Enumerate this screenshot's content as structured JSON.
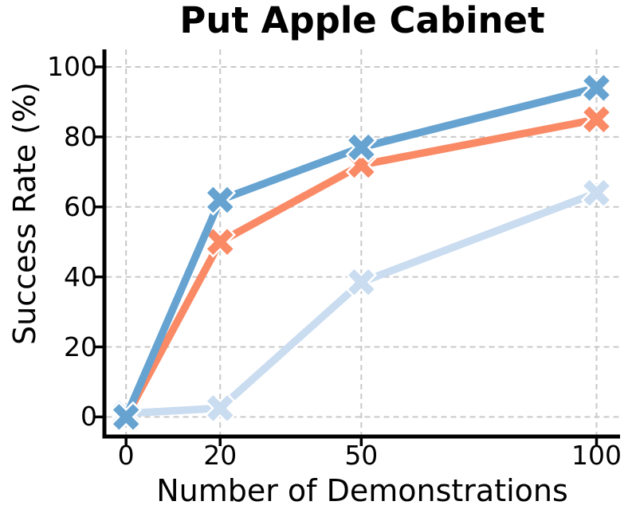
{
  "chart_data": {
    "type": "line",
    "title": "Put Apple Cabinet",
    "xlabel": "Number of Demonstrations",
    "ylabel": "Success Rate (%)",
    "x": [
      0,
      20,
      50,
      100
    ],
    "x_tick_labels": [
      "0",
      "20",
      "50",
      "100"
    ],
    "y_tick_values": [
      0,
      20,
      40,
      60,
      80,
      100
    ],
    "y_tick_labels": [
      "0",
      "20",
      "40",
      "60",
      "80",
      "100"
    ],
    "xlim": [
      -4.6,
      105
    ],
    "ylim": [
      -5.6,
      105
    ],
    "grid": {
      "visible": true,
      "style": "dashed",
      "color": "#c9c9c9"
    },
    "legend_position": "none",
    "marker": "X",
    "series": [
      {
        "name": "light-blue",
        "color": "#C9DCF0",
        "values": [
          1,
          2.5,
          38.5,
          64
        ]
      },
      {
        "name": "orange",
        "color": "#F98A65",
        "values": [
          0,
          50,
          72,
          85
        ]
      },
      {
        "name": "blue",
        "color": "#66A3D1",
        "values": [
          0,
          62,
          77,
          94
        ]
      }
    ]
  },
  "styles": {
    "background": "#ffffff",
    "axis_color": "#000000",
    "text_color": "#000000",
    "marker_edge_color": "#ffffff"
  }
}
